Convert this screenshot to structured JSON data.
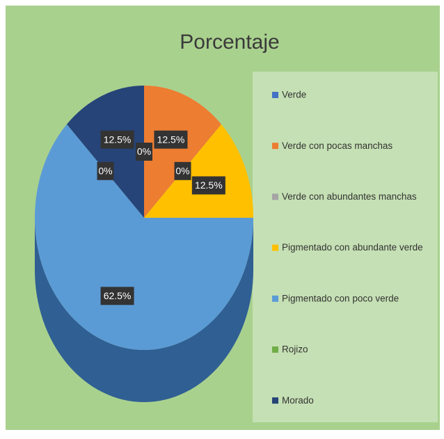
{
  "chart_data": {
    "type": "pie",
    "title": "Porcentaje",
    "categories": [
      "Verde",
      "Verde con pocas manchas",
      "Verde con abundantes manchas",
      "Pigmentado con abundante verde",
      "Pigmentado con poco verde",
      "Rojizo",
      "Morado"
    ],
    "values": [
      0,
      12.5,
      0,
      12.5,
      62.5,
      0,
      12.5
    ],
    "value_labels": [
      "0%",
      "12.5%",
      "0%",
      "12.5%",
      "62.5%",
      "0%",
      "12.5%"
    ],
    "colors": [
      "#4472c4",
      "#ed7d31",
      "#a5a5a5",
      "#ffc000",
      "#5b9bd5",
      "#70ad47",
      "#264478"
    ],
    "legend": "right"
  }
}
